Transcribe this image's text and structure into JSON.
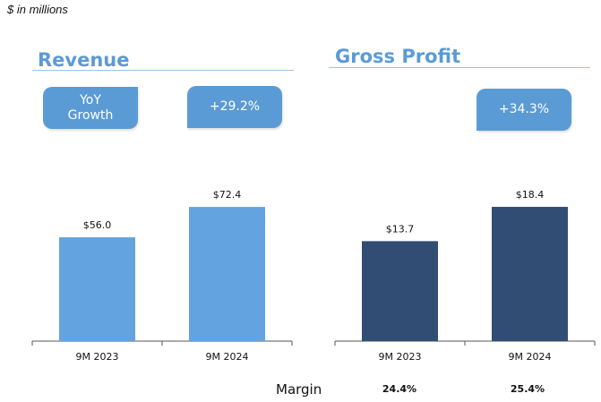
{
  "units_note": "$ in millions",
  "colors": {
    "revenue": "#62a3e0",
    "gross_profit": "#314d74",
    "pill": "#5b9bd5",
    "revenue_title": "#5b9bd5",
    "gp_title": "#5b9bd5"
  },
  "panels": {
    "revenue": {
      "title": "Revenue",
      "yoy_label": "YoY Growth",
      "growth": "+29.2%"
    },
    "gross_profit": {
      "title": "Gross Profit",
      "growth": "+34.3%"
    }
  },
  "margin": {
    "label": "Margin",
    "values": [
      "24.4%",
      "25.4%"
    ]
  },
  "chart_data": [
    {
      "type": "bar",
      "title": "Revenue",
      "categories": [
        "9M 2023",
        "9M 2024"
      ],
      "values": [
        56.0,
        72.4
      ],
      "labels": [
        "$56.0",
        "$72.4"
      ],
      "ylim": [
        0,
        100
      ],
      "color": "#62a3e0"
    },
    {
      "type": "bar",
      "title": "Gross Profit",
      "categories": [
        "9M 2023",
        "9M 2024"
      ],
      "values": [
        13.7,
        18.4
      ],
      "labels": [
        "$13.7",
        "$18.4"
      ],
      "ylim": [
        0,
        25.4
      ],
      "color": "#314d74"
    }
  ]
}
